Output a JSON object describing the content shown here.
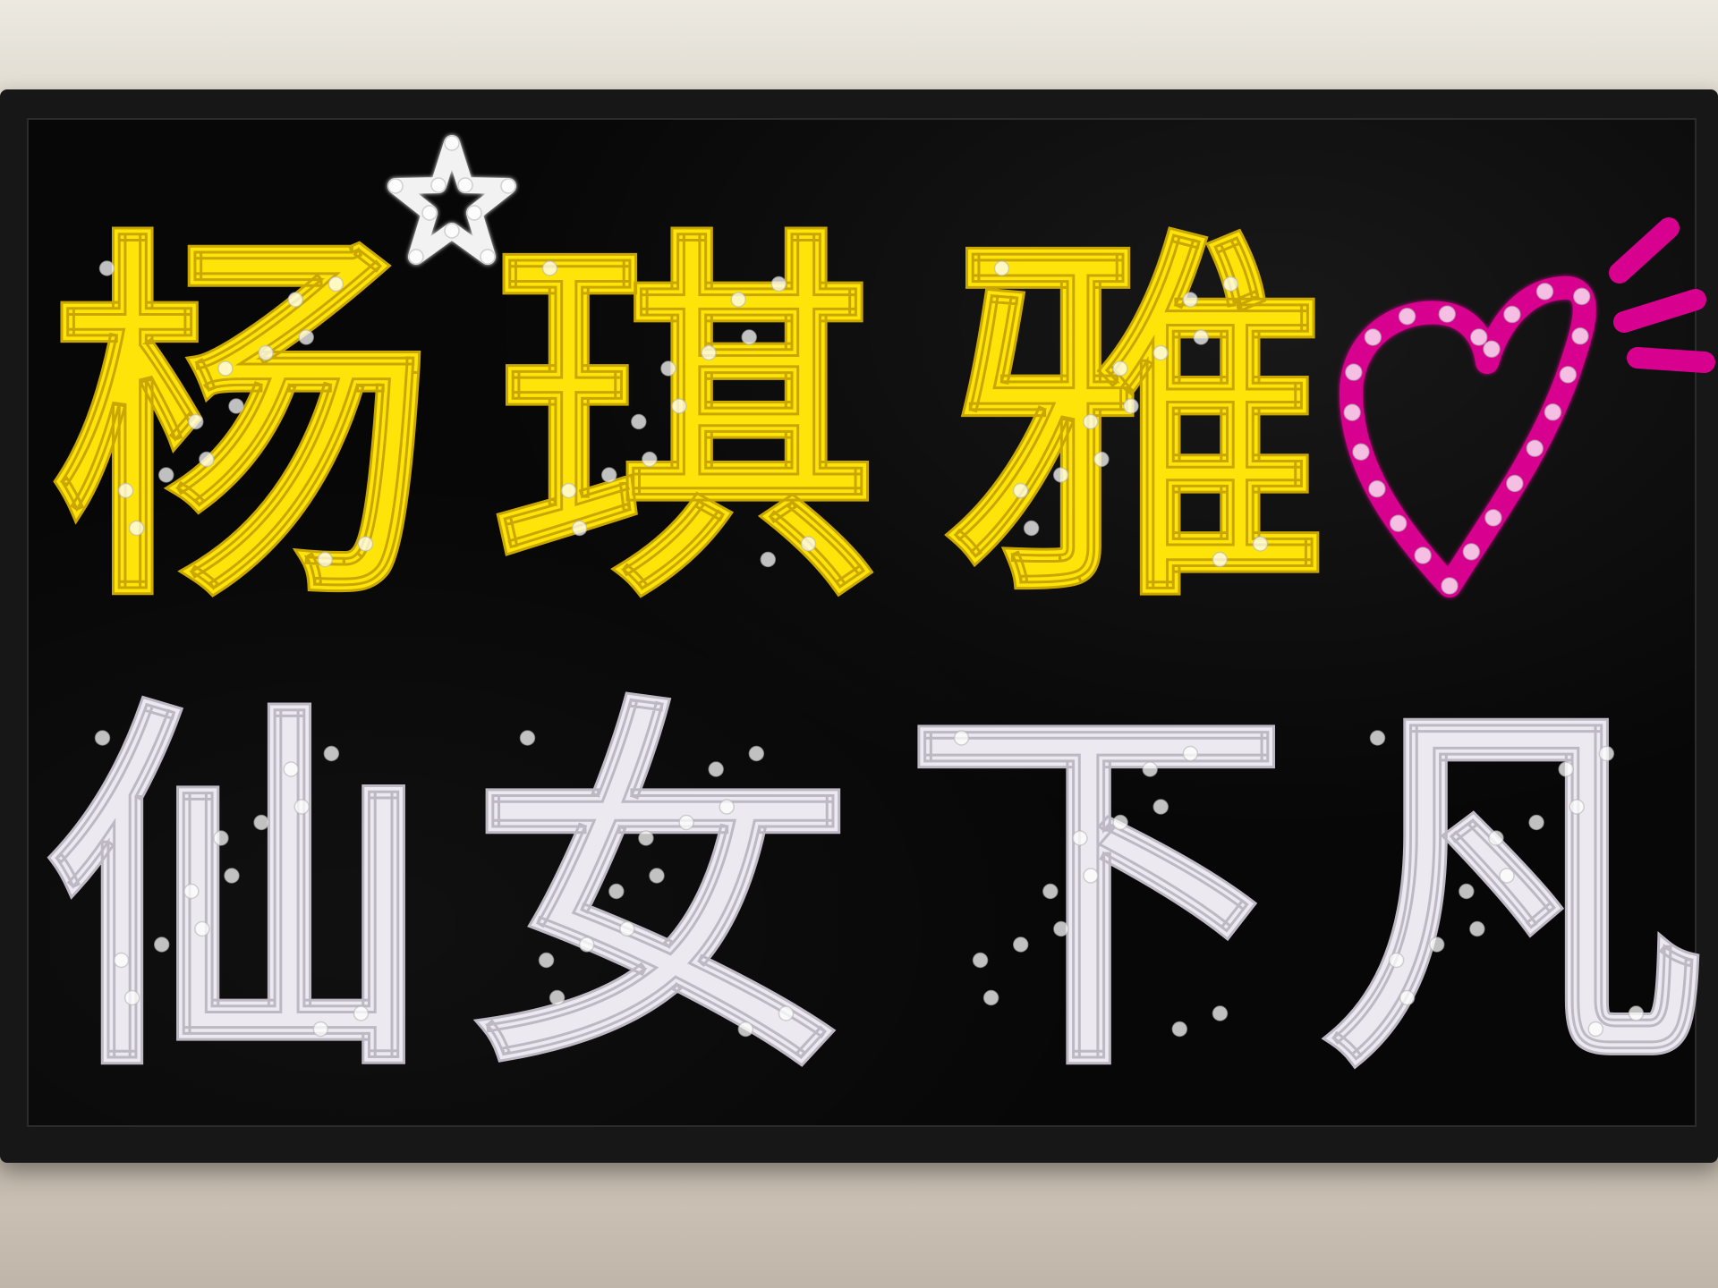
{
  "sign": {
    "line1": [
      "杨",
      "琪",
      "雅"
    ],
    "line2": [
      "仙",
      "女",
      "下",
      "凡"
    ]
  },
  "colors": {
    "line1": "#ffe40a",
    "line2": "#ece9f0",
    "heart": "#d8008f",
    "star": "#f2f2f2",
    "board": "#070707",
    "frame": "#171717"
  },
  "icons": [
    "star-icon",
    "heart-icon",
    "sparkle-lines-icon"
  ]
}
